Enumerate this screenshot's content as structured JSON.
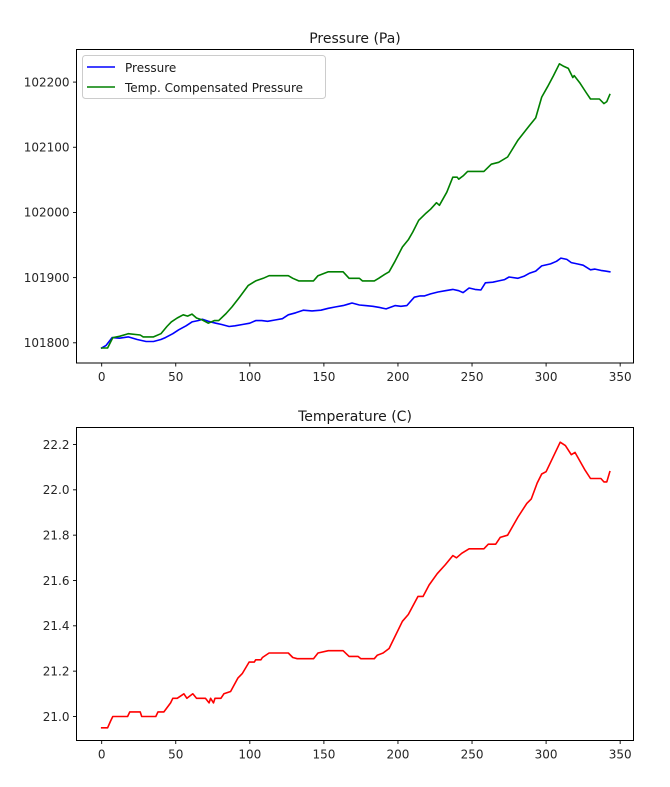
{
  "chart_data": [
    {
      "type": "line",
      "title": "Pressure (Pa)",
      "xlabel": "",
      "ylabel": "",
      "xlim": [
        -17,
        359
      ],
      "ylim": [
        101769,
        102250
      ],
      "grid": false,
      "xticks": [
        0,
        50,
        100,
        150,
        200,
        250,
        300,
        350
      ],
      "yticks": [
        101800,
        101900,
        102000,
        102100,
        102200
      ],
      "legend": {
        "placement": "top-left",
        "entries": [
          "Pressure",
          "Temp. Compensated Pressure"
        ]
      },
      "series": [
        {
          "name": "Pressure",
          "color": "#0000ff",
          "x": [
            0,
            3,
            7,
            12,
            18,
            24,
            30,
            35,
            40,
            43,
            48,
            52,
            57,
            61,
            65,
            68,
            72,
            77,
            81,
            86,
            90,
            95,
            100,
            104,
            108,
            112,
            117,
            122,
            126,
            131,
            136,
            142,
            148,
            153,
            158,
            163,
            166,
            169,
            174,
            178,
            183,
            188,
            192,
            198,
            202,
            206,
            211,
            215,
            218,
            222,
            227,
            232,
            237,
            241,
            244,
            248,
            252,
            256,
            259,
            264,
            268,
            272,
            275,
            281,
            285,
            289,
            293,
            297,
            303,
            307,
            310,
            314,
            317,
            321,
            325,
            330,
            333,
            337,
            340,
            343
          ],
          "y": [
            101792,
            101796,
            101808,
            101807,
            101809,
            101805,
            101802,
            101802,
            101805,
            101808,
            101814,
            101820,
            101826,
            101832,
            101834,
            101836,
            101833,
            101830,
            101828,
            101825,
            101826,
            101828,
            101830,
            101834,
            101834,
            101833,
            101835,
            101837,
            101843,
            101846,
            101850,
            101849,
            101850,
            101853,
            101855,
            101857,
            101859,
            101861,
            101858,
            101857,
            101856,
            101854,
            101852,
            101857,
            101856,
            101857,
            101870,
            101872,
            101872,
            101875,
            101878,
            101880,
            101882,
            101880,
            101877,
            101884,
            101882,
            101881,
            101892,
            101893,
            101895,
            101897,
            101901,
            101899,
            101902,
            101907,
            101910,
            101918,
            101921,
            101925,
            101930,
            101928,
            101923,
            101921,
            101919,
            101912,
            101913,
            101911,
            101910,
            101909
          ]
        },
        {
          "name": "Temp. Compensated Pressure",
          "color": "#008000",
          "x": [
            0,
            4,
            7.5,
            12,
            18,
            26,
            28,
            35,
            40,
            44,
            47,
            51,
            55,
            58,
            61,
            64,
            68,
            72,
            76,
            79,
            84,
            88,
            93,
            99,
            104,
            109,
            113,
            120,
            126,
            129,
            133,
            143,
            146,
            153,
            163,
            167,
            174,
            176,
            184,
            187,
            191,
            194,
            198,
            203,
            207,
            210,
            214,
            219,
            222,
            226,
            228,
            233,
            237,
            240,
            241,
            244,
            247,
            258,
            263,
            268,
            274,
            281,
            289,
            293,
            297,
            301,
            305,
            309,
            312,
            315,
            318,
            319,
            323,
            327,
            330,
            336,
            339,
            341,
            343
          ],
          "y": [
            101792,
            101792,
            101808,
            101810,
            101814,
            101812,
            101809,
            101809,
            101814,
            101825,
            101832,
            101838,
            101843,
            101841,
            101844,
            101838,
            101835,
            101830,
            101834,
            101834,
            101845,
            101855,
            101870,
            101888,
            101895,
            101899,
            101903,
            101903,
            101903,
            101899,
            101895,
            101895,
            101903,
            101909,
            101909,
            101899,
            101899,
            101895,
            101895,
            101899,
            101905,
            101909,
            101925,
            101947,
            101958,
            101970,
            101988,
            101999,
            102005,
            102015,
            102011,
            102031,
            102054,
            102054,
            102051,
            102056,
            102063,
            102063,
            102074,
            102077,
            102085,
            102111,
            102134,
            102145,
            102177,
            102193,
            102210,
            102228,
            102224,
            102221,
            102207,
            102210,
            102198,
            102184,
            102174,
            102174,
            102167,
            102170,
            102181
          ]
        }
      ]
    },
    {
      "type": "line",
      "title": "Temperature (C)",
      "xlabel": "",
      "ylabel": "",
      "xlim": [
        -17,
        359
      ],
      "ylim": [
        20.894,
        22.275
      ],
      "grid": false,
      "xticks": [
        0,
        50,
        100,
        150,
        200,
        250,
        300,
        350
      ],
      "yticks": [
        "21.0",
        "21.2",
        "21.4",
        "21.6",
        "21.8",
        "22.0",
        "22.2"
      ],
      "series": [
        {
          "name": "Temperature",
          "color": "#ff0000",
          "x": [
            0,
            4,
            6,
            7.5,
            17.5,
            19,
            26,
            27,
            36.5,
            38,
            42,
            46.5,
            48,
            51,
            55.5,
            57.5,
            61.5,
            64,
            70,
            72.5,
            73.5,
            75.5,
            76.5,
            80.5,
            82.5,
            87,
            92,
            95,
            99.5,
            103,
            104,
            107.5,
            108.5,
            113,
            126,
            129,
            132,
            143,
            146,
            153,
            163,
            167,
            173,
            175,
            184,
            186,
            190,
            194,
            203,
            207,
            213.5,
            217,
            221,
            226.5,
            232,
            237,
            239.5,
            243,
            248,
            258,
            261,
            266,
            269,
            274,
            281,
            287,
            290,
            294,
            297,
            300,
            309.5,
            313,
            317,
            319.5,
            326,
            330,
            337,
            339,
            341,
            343
          ],
          "y": [
            20.95,
            20.95,
            20.98,
            21.0,
            21.0,
            21.02,
            21.02,
            21.0,
            21.0,
            21.02,
            21.02,
            21.06,
            21.08,
            21.08,
            21.1,
            21.08,
            21.1,
            21.08,
            21.08,
            21.06,
            21.08,
            21.06,
            21.08,
            21.08,
            21.1,
            21.11,
            21.17,
            21.19,
            21.24,
            21.24,
            21.25,
            21.25,
            21.26,
            21.28,
            21.28,
            21.26,
            21.255,
            21.255,
            21.28,
            21.29,
            21.29,
            21.265,
            21.265,
            21.255,
            21.255,
            21.27,
            21.28,
            21.3,
            21.42,
            21.45,
            21.53,
            21.53,
            21.58,
            21.63,
            21.67,
            21.71,
            21.7,
            21.72,
            21.74,
            21.74,
            21.76,
            21.76,
            21.79,
            21.8,
            21.88,
            21.94,
            21.96,
            22.03,
            22.07,
            22.08,
            22.21,
            22.195,
            22.155,
            22.165,
            22.09,
            22.05,
            22.05,
            22.035,
            22.035,
            22.08
          ]
        }
      ]
    }
  ]
}
